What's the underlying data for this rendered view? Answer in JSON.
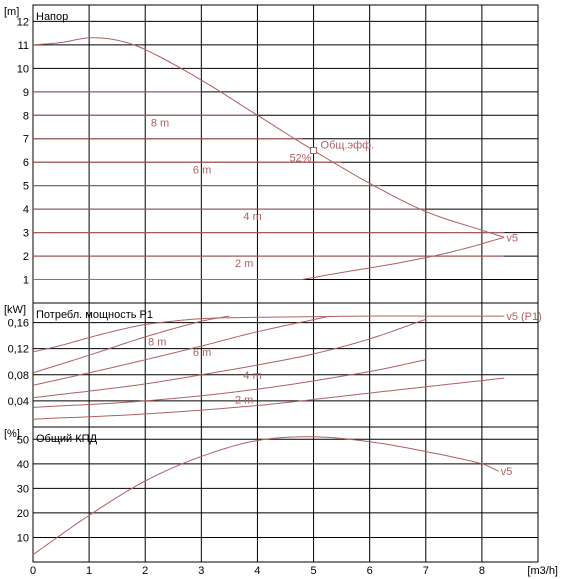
{
  "chart_data": [
    {
      "type": "line",
      "title": "Напор",
      "ylabel": "[m]",
      "xlabel": "[m3/h]",
      "xlim": [
        0,
        9
      ],
      "ylim": [
        0,
        12.7
      ],
      "xticks": [
        0,
        1,
        2,
        3,
        4,
        5,
        6,
        7,
        8
      ],
      "yticks": [
        1,
        2,
        3,
        4,
        5,
        6,
        7,
        8,
        9,
        10,
        11,
        12
      ],
      "grid": true,
      "curve_color": "#b06060",
      "grid_color": "#000000",
      "constant_head_lines": [
        {
          "name": "2 m",
          "y": 2,
          "x": [
            0,
            8.4
          ]
        },
        {
          "name": "",
          "y": 1,
          "x": [
            0,
            4.8
          ]
        },
        {
          "name": "",
          "y": 3,
          "x": [
            0,
            8.4
          ]
        },
        {
          "name": "4 m",
          "y": 4,
          "x": [
            0,
            7.0
          ]
        },
        {
          "name": "",
          "y": 5,
          "x": [
            0,
            6.2
          ]
        },
        {
          "name": "6 m",
          "y": 6,
          "x": [
            0,
            5.5
          ]
        },
        {
          "name": "",
          "y": 7,
          "x": [
            0,
            4.8
          ]
        },
        {
          "name": "8 m",
          "y": 8,
          "x": [
            0,
            4.0
          ]
        },
        {
          "name": "",
          "y": 9,
          "x": [
            0,
            3.0
          ]
        }
      ],
      "series": [
        {
          "name": "v5",
          "x": [
            0,
            0.5,
            1.0,
            1.5,
            2.0,
            3.0,
            4.0,
            5.0,
            6.0,
            7.0,
            8.0,
            8.4
          ],
          "y": [
            11.0,
            11.1,
            11.3,
            11.2,
            10.8,
            9.5,
            8.0,
            6.5,
            5.1,
            3.9,
            3.1,
            2.8
          ]
        },
        {
          "name": "",
          "x": [
            4.8,
            5.5,
            6.5,
            7.5,
            8.4
          ],
          "y": [
            1.0,
            1.3,
            1.7,
            2.2,
            2.8
          ]
        }
      ],
      "annotations": [
        {
          "text": "Общ.эфф.",
          "x": 5.0,
          "y": 6.5
        },
        {
          "text": "52%",
          "x": 5.0,
          "y": 6.5
        }
      ]
    },
    {
      "type": "line",
      "title": "Потребл. мощность P1",
      "ylabel": "[kW]",
      "xlim": [
        0,
        9
      ],
      "ylim": [
        0,
        0.19
      ],
      "yticks": [
        0.04,
        0.08,
        0.12,
        0.16
      ],
      "ytick_labels": [
        "0,04",
        "0,08",
        "0,12",
        "0,16"
      ],
      "grid": true,
      "series": [
        {
          "name": "v5 (P1)",
          "x": [
            0,
            0.5,
            1.0,
            1.5,
            2.0,
            3.0,
            4.0,
            5.0,
            6.0,
            7.0,
            8.0,
            8.4
          ],
          "y": [
            0.115,
            0.125,
            0.137,
            0.148,
            0.157,
            0.166,
            0.168,
            0.169,
            0.17,
            0.17,
            0.17,
            0.17
          ]
        },
        {
          "name": "8 m",
          "x": [
            0,
            1,
            2,
            3,
            3.5
          ],
          "y": [
            0.083,
            0.11,
            0.138,
            0.162,
            0.17
          ]
        },
        {
          "name": "6 m",
          "x": [
            0,
            1,
            2,
            3,
            4,
            5.3
          ],
          "y": [
            0.064,
            0.083,
            0.103,
            0.124,
            0.146,
            0.17
          ]
        },
        {
          "name": "4 m",
          "x": [
            0,
            1,
            2,
            3,
            4,
            5,
            6,
            7
          ],
          "y": [
            0.045,
            0.055,
            0.066,
            0.08,
            0.095,
            0.112,
            0.135,
            0.165
          ]
        },
        {
          "name": "",
          "x": [
            0,
            2,
            4,
            6,
            7
          ],
          "y": [
            0.03,
            0.04,
            0.058,
            0.085,
            0.103
          ]
        },
        {
          "name": "2 m",
          "x": [
            0,
            2,
            4,
            6,
            8.4
          ],
          "y": [
            0.012,
            0.02,
            0.033,
            0.052,
            0.075
          ]
        }
      ],
      "curve_labels": [
        {
          "text": "8 m",
          "x": 2.05,
          "y": 0.131
        },
        {
          "text": "6 m",
          "x": 2.85,
          "y": 0.115
        },
        {
          "text": "4 m",
          "x": 3.75,
          "y": 0.08
        },
        {
          "text": "2 m",
          "x": 3.6,
          "y": 0.042
        }
      ]
    },
    {
      "type": "line",
      "title": "Общий КПД",
      "ylabel": "[%]",
      "xlim": [
        0,
        9
      ],
      "ylim": [
        0,
        55
      ],
      "yticks": [
        10,
        20,
        30,
        40,
        50
      ],
      "xticks": [
        0,
        1,
        2,
        3,
        4,
        5,
        6,
        7,
        8
      ],
      "grid": true,
      "series": [
        {
          "name": "v5",
          "x": [
            0,
            1,
            2,
            3,
            4,
            5,
            6,
            7,
            8,
            8.3
          ],
          "y": [
            3,
            19,
            33,
            43,
            49.5,
            51,
            49,
            45,
            40,
            37
          ]
        }
      ]
    }
  ],
  "axis_labels": {
    "head_unit": "[m]",
    "power_unit": "[kW]",
    "eff_unit": "[%]",
    "flow_unit": "[m3/h]"
  }
}
